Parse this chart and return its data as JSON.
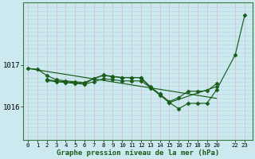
{
  "bg_color": "#cce9f0",
  "line_color": "#1a5c1a",
  "title": "Graphe pression niveau de la mer (hPa)",
  "ylim": [
    1015.2,
    1018.5
  ],
  "yticks": [
    1016,
    1017
  ],
  "xticks": [
    0,
    1,
    2,
    3,
    4,
    5,
    6,
    7,
    8,
    9,
    10,
    11,
    12,
    13,
    14,
    15,
    16,
    17,
    18,
    19,
    20,
    22,
    23
  ],
  "xlim": [
    -0.5,
    23.8
  ],
  "vgrid_color": "#ddbcbc",
  "hgrid_color": "#b8dde6",
  "series": [
    {
      "x": [
        0,
        1,
        2,
        3,
        4,
        5,
        6,
        7,
        8,
        9,
        10,
        11,
        12,
        13,
        14,
        15,
        16,
        17,
        18,
        19,
        20,
        22,
        23
      ],
      "y": [
        1016.92,
        1016.9,
        1016.75,
        1016.65,
        1016.62,
        1016.6,
        1016.58,
        1016.68,
        1016.75,
        1016.72,
        1016.7,
        1016.7,
        1016.7,
        1016.45,
        1016.3,
        1016.1,
        1015.95,
        1016.08,
        1016.08,
        1016.08,
        1016.4,
        1017.25,
        1018.2
      ],
      "marker": "D",
      "markersize": 2.5
    },
    {
      "x": [
        2,
        3,
        4,
        5,
        6,
        7,
        8,
        9,
        10,
        11,
        12,
        13,
        14,
        15,
        16,
        17,
        18,
        19,
        20
      ],
      "y": [
        1016.65,
        1016.62,
        1016.6,
        1016.58,
        1016.55,
        1016.68,
        1016.76,
        1016.73,
        1016.7,
        1016.7,
        1016.7,
        1016.48,
        1016.3,
        1016.12,
        1016.22,
        1016.37,
        1016.37,
        1016.38,
        1016.55
      ],
      "marker": "D",
      "markersize": 2.5
    },
    {
      "x": [
        2,
        3,
        4,
        5,
        6,
        7,
        8,
        9,
        10,
        11,
        12,
        13,
        14,
        15,
        20
      ],
      "y": [
        1016.63,
        1016.6,
        1016.58,
        1016.56,
        1016.54,
        1016.6,
        1016.67,
        1016.65,
        1016.62,
        1016.62,
        1016.62,
        1016.46,
        1016.28,
        1016.1,
        1016.48
      ],
      "marker": "D",
      "markersize": 2.5
    },
    {
      "x": [
        0,
        20
      ],
      "y": [
        1016.92,
        1016.2
      ],
      "marker": null,
      "markersize": 0
    }
  ]
}
